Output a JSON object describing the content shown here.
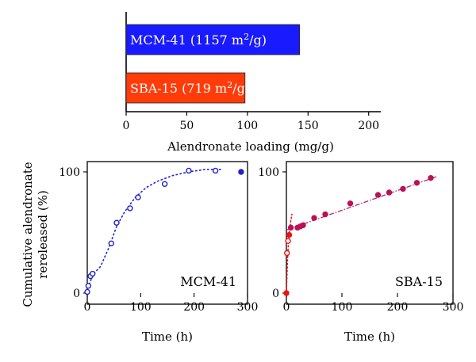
{
  "chart_data": [
    {
      "type": "bar",
      "orientation": "horizontal",
      "categories": [
        "MCM-41",
        "SBA-15"
      ],
      "values": [
        143,
        98
      ],
      "bar_labels": [
        "MCM-41 (1157 m²/g)",
        "SBA-15 (719 m²/g)"
      ],
      "bar_label_parts": [
        {
          "name": "MCM-41",
          "open": "(1157 m",
          "sup": "2",
          "close": "/g)"
        },
        {
          "name": "SBA-15",
          "open": "(719 m",
          "sup": "2",
          "close": "/g)"
        }
      ],
      "colors": [
        "#1a1aff",
        "#ff3b0a"
      ],
      "xlabel": "Alendronate loading (mg/g)",
      "xlim": [
        0,
        210
      ],
      "xticks": [
        0,
        50,
        100,
        150,
        200
      ]
    },
    {
      "type": "scatter",
      "panel_label": "MCM-41",
      "xlabel": "Time (h)",
      "ylabel": "Cumulative alendronate rereleased (%)",
      "ylabel_lines": [
        "Cumulative alendronate",
        "rereleased (%)"
      ],
      "xlim": [
        0,
        300
      ],
      "ylim": [
        0,
        100
      ],
      "xticks": [
        0,
        100,
        200,
        300
      ],
      "yticks": [
        0,
        100
      ],
      "color": "#2222cc",
      "series": [
        {
          "points": [
            [
              0,
              1
            ],
            [
              2,
              6
            ],
            [
              6,
              14
            ],
            [
              10,
              16
            ],
            [
              45,
              41
            ],
            [
              55,
              58
            ],
            [
              80,
              70
            ],
            [
              95,
              79
            ],
            [
              145,
              90
            ],
            [
              190,
              101
            ],
            [
              240,
              101
            ],
            [
              288,
              100
            ]
          ],
          "open": [
            true,
            true,
            true,
            true,
            true,
            true,
            true,
            true,
            true,
            true,
            true,
            false
          ]
        }
      ],
      "fit_curve": [
        [
          0,
          1
        ],
        [
          5,
          9
        ],
        [
          12,
          16
        ],
        [
          25,
          22
        ],
        [
          40,
          37
        ],
        [
          55,
          55
        ],
        [
          70,
          67
        ],
        [
          90,
          79
        ],
        [
          110,
          87
        ],
        [
          130,
          92
        ],
        [
          160,
          97
        ],
        [
          190,
          100
        ],
        [
          220,
          102
        ],
        [
          250,
          102
        ]
      ]
    },
    {
      "type": "scatter",
      "panel_label": "SBA-15",
      "xlabel": "Time (h)",
      "xlim": [
        0,
        300
      ],
      "ylim": [
        0,
        100
      ],
      "xticks": [
        0,
        100,
        200,
        300
      ],
      "yticks": [
        0,
        100
      ],
      "burst_color": "#ee1111",
      "color": "#bb1155",
      "series": [
        {
          "points": [
            [
              0,
              0
            ],
            [
              1,
              33
            ],
            [
              3,
              43
            ],
            [
              5,
              48
            ],
            [
              8,
              54
            ],
            [
              20,
              54
            ],
            [
              25,
              55
            ],
            [
              30,
              56
            ],
            [
              50,
              62
            ],
            [
              70,
              65
            ],
            [
              115,
              74
            ],
            [
              165,
              81
            ],
            [
              185,
              83
            ],
            [
              210,
              86
            ],
            [
              235,
              91
            ],
            [
              260,
              95
            ]
          ],
          "open": [
            false,
            true,
            true,
            false,
            false,
            false,
            false,
            false,
            false,
            false,
            false,
            false,
            false,
            false,
            false,
            false
          ]
        }
      ],
      "burst_fit": [
        [
          0,
          0
        ],
        [
          2,
          27
        ],
        [
          4,
          44
        ],
        [
          7,
          57
        ],
        [
          10,
          65
        ]
      ],
      "linear_fit": [
        [
          0,
          52
        ],
        [
          270,
          96
        ]
      ]
    }
  ]
}
